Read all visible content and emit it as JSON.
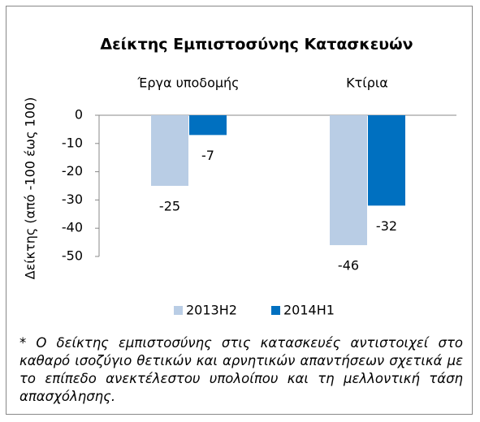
{
  "chart_data": {
    "type": "bar",
    "title": "Δείκτης Εμπιστοσύνης Κατασκευών",
    "y_label": "Δείκτης (από -100 έως 100)",
    "categories": [
      "Έργα υποδομής",
      "Κτίρια"
    ],
    "series": [
      {
        "name": "2013H2",
        "color": "#b9cde5",
        "values": [
          -25,
          -46
        ]
      },
      {
        "name": "2014H1",
        "color": "#0070c0",
        "values": [
          -7,
          -32
        ]
      }
    ],
    "ylim": [
      -50,
      0
    ],
    "yticks": [
      0,
      -10,
      -20,
      -30,
      -40,
      -50
    ],
    "grid": false,
    "legend": "bottom"
  },
  "footnote": "* Ο δείκτης εμπιστοσύνης στις κατασκευές αντιστοιχεί στο καθαρό ισοζύγιο θετικών και αρνητικών απαντήσεων σχετικά με το επίπεδο ανεκτέλεστου υπολοίπου και τη μελλοντική τάση απασχόλησης."
}
